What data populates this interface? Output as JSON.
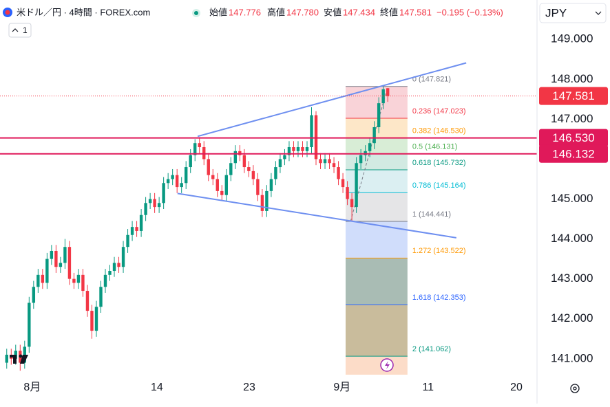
{
  "header": {
    "symbol": "米ドル／円 · 4時間 · FOREX.com",
    "open_label": "始値",
    "open": "147.776",
    "high_label": "高値",
    "high": "147.780",
    "low_label": "安値",
    "low": "147.434",
    "close_label": "終値",
    "close": "147.581",
    "change": "−0.195 (−0.13%)",
    "currency": "JPY",
    "interval_count": "1"
  },
  "chart_data": {
    "type": "candlestick",
    "xlim": [
      -1.5,
      118.3
    ],
    "xticks": [
      {
        "value": 5.7,
        "label": "8月"
      },
      {
        "value": 33.5,
        "label": "14"
      },
      {
        "value": 54.1,
        "label": "23"
      },
      {
        "value": 74.8,
        "label": "9月"
      },
      {
        "value": 94.0,
        "label": "11"
      },
      {
        "value": 113.7,
        "label": "20"
      }
    ],
    "ylim": [
      140.6,
      149.4
    ],
    "yticks": [
      {
        "value": 141,
        "label": "141.000"
      },
      {
        "value": 142,
        "label": "142.000"
      },
      {
        "value": 143,
        "label": "143.000"
      },
      {
        "value": 144,
        "label": "144.000"
      },
      {
        "value": 145,
        "label": "145.000"
      },
      {
        "value": 147,
        "label": "147.000"
      },
      {
        "value": 148,
        "label": "148.000"
      },
      {
        "value": 149,
        "label": "149.000"
      }
    ],
    "up_color": "#089981",
    "down_color": "#f23645",
    "open": [
      140.9,
      141.1,
      141.0,
      141.2,
      140.9,
      141.3,
      142.4,
      142.8,
      143.1,
      142.9,
      143.5,
      143.7,
      143.3,
      143.4,
      143.8,
      143.0,
      142.9,
      143.1,
      142.7,
      142.2,
      141.7,
      142.3,
      142.8,
      143.1,
      143.2,
      143.4,
      143.3,
      143.8,
      144.1,
      144.3,
      144.2,
      144.6,
      144.9,
      145.0,
      144.8,
      144.9,
      145.4,
      145.5,
      145.6,
      145.3,
      145.4,
      145.8,
      146.1,
      146.4,
      146.3,
      146.0,
      145.6,
      145.5,
      145.2,
      145.1,
      145.6,
      145.9,
      146.2,
      146.1,
      145.8,
      145.7,
      145.5,
      145.1,
      144.7,
      145.2,
      145.5,
      145.8,
      146.0,
      146.1,
      146.3,
      146.2,
      146.3,
      146.2,
      146.3,
      147.1,
      146.0,
      145.9,
      146.0,
      145.9,
      145.8,
      145.5,
      145.3,
      145.0,
      144.8,
      145.9,
      146.1,
      146.2,
      146.4,
      146.8,
      147.4,
      147.776
    ],
    "high": [
      141.25,
      141.25,
      141.35,
      141.35,
      141.45,
      142.55,
      142.95,
      143.25,
      143.25,
      143.65,
      143.85,
      143.85,
      143.55,
      144.0,
      143.95,
      143.15,
      143.25,
      143.25,
      142.85,
      142.35,
      142.45,
      142.95,
      143.25,
      143.35,
      143.55,
      143.55,
      143.95,
      144.25,
      144.45,
      144.45,
      144.75,
      145.05,
      145.15,
      145.15,
      145.05,
      145.55,
      145.65,
      145.75,
      145.75,
      145.55,
      145.95,
      146.25,
      146.5,
      146.55,
      146.45,
      146.15,
      145.75,
      145.65,
      145.35,
      145.75,
      146.05,
      146.35,
      146.35,
      146.25,
      145.95,
      145.85,
      145.65,
      145.25,
      145.35,
      145.65,
      145.95,
      146.15,
      146.25,
      146.45,
      146.45,
      146.45,
      146.45,
      146.45,
      147.3,
      147.2,
      146.15,
      146.15,
      146.15,
      146.05,
      145.95,
      145.65,
      145.45,
      145.15,
      146.05,
      146.25,
      146.35,
      146.55,
      146.95,
      147.55,
      147.821,
      147.78
    ],
    "low": [
      140.75,
      140.85,
      140.85,
      140.7,
      140.75,
      141.15,
      142.25,
      142.65,
      142.75,
      142.75,
      143.35,
      143.15,
      143.15,
      143.25,
      142.85,
      142.75,
      142.75,
      142.55,
      142.05,
      141.5,
      141.55,
      142.15,
      142.65,
      142.95,
      143.05,
      143.15,
      143.15,
      143.65,
      143.95,
      144.05,
      144.05,
      144.45,
      144.75,
      144.65,
      144.65,
      144.75,
      145.25,
      145.35,
      145.15,
      145.15,
      145.25,
      145.65,
      145.95,
      146.15,
      145.85,
      145.45,
      145.35,
      145.05,
      144.95,
      144.95,
      145.45,
      145.75,
      145.95,
      145.65,
      145.55,
      145.35,
      144.95,
      144.55,
      144.55,
      145.05,
      145.35,
      145.65,
      145.85,
      145.95,
      146.05,
      146.05,
      146.05,
      146.05,
      146.15,
      145.85,
      145.75,
      145.75,
      145.75,
      145.65,
      145.35,
      145.15,
      144.85,
      144.44,
      144.65,
      145.75,
      145.95,
      146.05,
      146.25,
      146.65,
      147.25,
      147.434
    ],
    "close": [
      141.1,
      141.0,
      141.2,
      140.9,
      141.3,
      142.4,
      142.8,
      143.1,
      142.9,
      143.5,
      143.7,
      143.3,
      143.4,
      143.8,
      143.0,
      142.9,
      143.1,
      142.7,
      142.2,
      141.7,
      142.3,
      142.8,
      143.1,
      143.2,
      143.4,
      143.3,
      143.8,
      144.1,
      144.3,
      144.2,
      144.6,
      144.9,
      145.0,
      144.8,
      144.9,
      145.4,
      145.5,
      145.6,
      145.3,
      145.4,
      145.8,
      146.1,
      146.4,
      146.3,
      146.0,
      145.6,
      145.5,
      145.2,
      145.1,
      145.6,
      145.9,
      146.2,
      146.1,
      145.8,
      145.7,
      145.5,
      145.1,
      144.7,
      145.2,
      145.5,
      145.8,
      146.0,
      146.1,
      146.3,
      146.2,
      146.3,
      146.2,
      146.3,
      147.1,
      146.0,
      145.9,
      146.0,
      145.9,
      145.8,
      145.5,
      145.3,
      145.0,
      144.8,
      145.9,
      146.1,
      146.2,
      146.4,
      146.8,
      147.4,
      147.75,
      147.581
    ],
    "last_price": {
      "value": 147.581,
      "label": "147.581",
      "color": "#f23645"
    },
    "horizontal_lines": [
      {
        "value": 146.53,
        "label": "146.530",
        "color": "#e0195a"
      },
      {
        "value": 146.132,
        "label": "146.132",
        "color": "#e0195a"
      }
    ],
    "trend_lines": [
      {
        "points": [
          [
            42.6,
            146.57
          ],
          [
            102.5,
            148.41
          ]
        ],
        "color": "#6e8ff0"
      },
      {
        "points": [
          [
            38.1,
            145.14
          ],
          [
            100.3,
            144.03
          ]
        ],
        "color": "#6e8ff0"
      }
    ],
    "fib": {
      "x": [
        75.6,
        89.4
      ],
      "diagonal": [
        [
          76.7,
          144.441
        ],
        [
          85.0,
          147.821
        ]
      ],
      "levels": [
        {
          "price": 147.821,
          "label": "0 (147.821)",
          "color": "#787b86"
        },
        {
          "price": 147.023,
          "label": "0.236 (147.023)",
          "color": "#f23645",
          "band": "#f9d3d8"
        },
        {
          "price": 146.53,
          "label": "0.382 (146.530)",
          "color": "#ff9800",
          "band": "#fde7c8"
        },
        {
          "price": 146.131,
          "label": "0.5 (146.131)",
          "color": "#4caf50",
          "band": "#d8edd6"
        },
        {
          "price": 145.732,
          "label": "0.618 (145.732)",
          "color": "#089981",
          "band": "#d2eae2"
        },
        {
          "price": 145.164,
          "label": "0.786 (145.164)",
          "color": "#00bcd4",
          "band": "#dbeff2"
        },
        {
          "price": 144.441,
          "label": "1 (144.441)",
          "color": "#787b86",
          "band": "#e5e5e7"
        },
        {
          "price": 143.522,
          "label": "1.272 (143.522)",
          "color": "#ff9800",
          "band": "#d0ddfb"
        },
        {
          "price": 142.353,
          "label": "1.618 (142.353)",
          "color": "#2962ff",
          "band": "#a9bcb4"
        },
        {
          "price": 141.062,
          "label": "2 (141.062)",
          "color": "#089981",
          "band": "#c9bc9c"
        }
      ]
    }
  }
}
